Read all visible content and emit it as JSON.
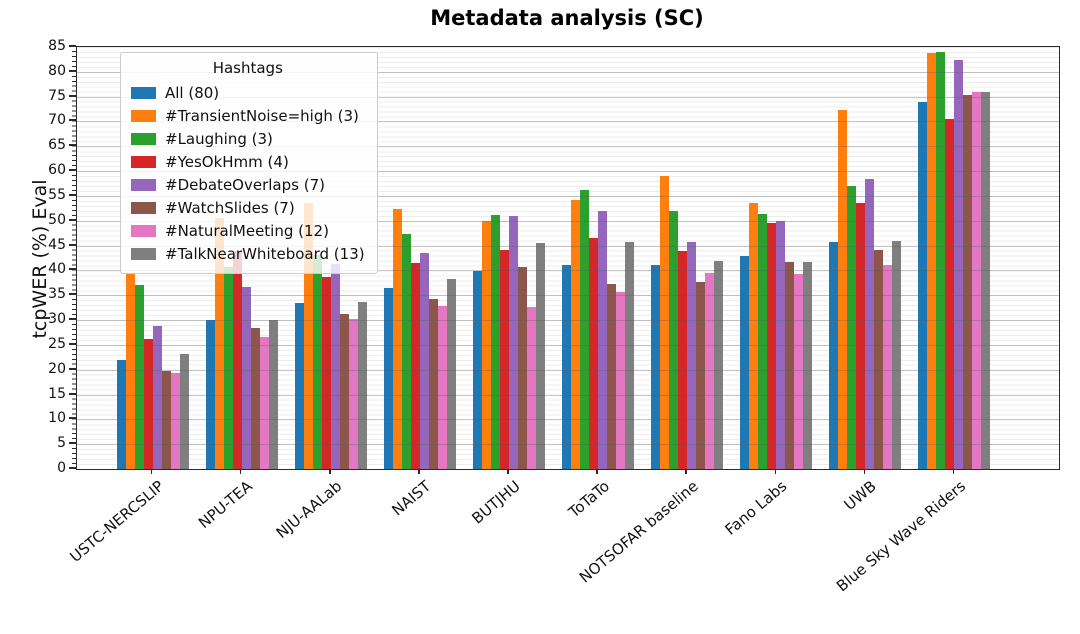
{
  "chart_data": {
    "type": "bar",
    "title": "Metadata analysis (SC)",
    "xlabel": "",
    "ylabel": "tcpWER (%) Eval",
    "ylim": [
      0,
      85
    ],
    "ytick_step": 5,
    "grid": "horizontal major gridlines every 5, faint minor lines every 1",
    "legend_title": "Hashtags",
    "legend_position": "upper left",
    "categories": [
      "USTC-NERCSLIP",
      "NPU-TEA",
      "NJU-AALab",
      "NAIST",
      "BUTJHU",
      "ToTaTo",
      "NOTSOFAR baseline",
      "Fano Labs",
      "UWB",
      "Blue Sky Wave Riders"
    ],
    "series": [
      {
        "name": "All (80)",
        "color": "#1f77b4",
        "values": [
          22.0,
          30.0,
          33.5,
          36.5,
          39.8,
          41.2,
          41.2,
          43.0,
          45.8,
          74.0
        ]
      },
      {
        "name": "#TransientNoise=high (3)",
        "color": "#ff7f0e",
        "values": [
          39.3,
          50.5,
          53.5,
          52.3,
          50.0,
          54.2,
          59.0,
          53.5,
          72.4,
          83.8
        ]
      },
      {
        "name": "#Laughing (3)",
        "color": "#2ca02c",
        "values": [
          37.0,
          40.6,
          43.1,
          47.3,
          51.2,
          56.3,
          51.9,
          51.3,
          57.0,
          84.0
        ]
      },
      {
        "name": "#YesOkHmm (4)",
        "color": "#d62728",
        "values": [
          26.1,
          44.0,
          38.6,
          41.6,
          44.2,
          46.6,
          44.0,
          49.5,
          53.5,
          70.5
        ]
      },
      {
        "name": "#DebateOverlaps (7)",
        "color": "#9467bd",
        "values": [
          28.9,
          36.6,
          41.3,
          43.5,
          51.0,
          52.0,
          45.8,
          50.0,
          58.4,
          82.4
        ]
      },
      {
        "name": "#WatchSlides (7)",
        "color": "#8c564b",
        "values": [
          19.8,
          28.5,
          31.2,
          34.2,
          40.6,
          37.3,
          37.7,
          41.8,
          44.1,
          75.3
        ]
      },
      {
        "name": "#NaturalMeeting (12)",
        "color": "#e377c2",
        "values": [
          19.3,
          26.5,
          30.3,
          32.9,
          32.6,
          35.6,
          39.5,
          39.3,
          41.1,
          76.0
        ]
      },
      {
        "name": "#TalkNearWhiteboard (13)",
        "color": "#7f7f7f",
        "values": [
          23.2,
          30.0,
          33.6,
          38.2,
          45.6,
          45.8,
          42.0,
          41.8,
          46.0,
          76.0
        ]
      }
    ]
  }
}
